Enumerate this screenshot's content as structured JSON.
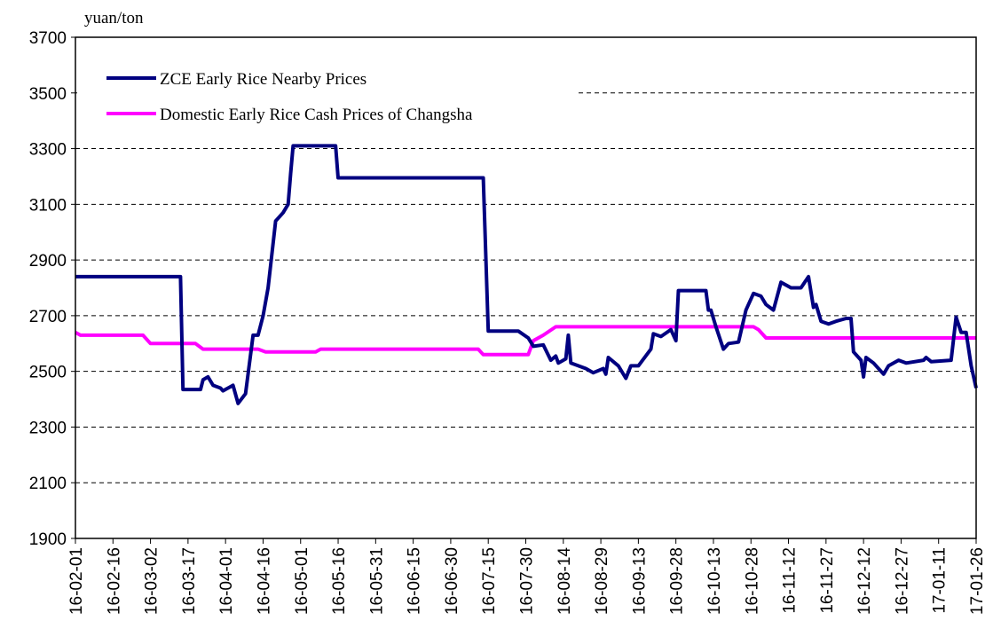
{
  "chart_data": {
    "type": "line",
    "y_unit_label": "yuan/ton",
    "ylim": [
      1900,
      3700
    ],
    "yticks": [
      1900,
      2100,
      2300,
      2500,
      2700,
      2900,
      3100,
      3300,
      3500,
      3700
    ],
    "xlim": [
      "16-02-01",
      "17-01-26"
    ],
    "xticks": [
      "16-02-01",
      "16-02-16",
      "16-03-02",
      "16-03-17",
      "16-04-01",
      "16-04-16",
      "16-05-01",
      "16-05-16",
      "16-05-31",
      "16-06-15",
      "16-06-30",
      "16-07-15",
      "16-07-30",
      "16-08-14",
      "16-08-29",
      "16-09-13",
      "16-09-28",
      "16-10-13",
      "16-10-28",
      "16-11-12",
      "16-11-27",
      "16-12-12",
      "16-12-27",
      "17-01-11",
      "17-01-26"
    ],
    "grid": true,
    "legend": "upper left",
    "series": [
      {
        "name": "ZCE Early Rice Nearby Prices",
        "color": "#000080",
        "x": [
          "16-02-01",
          "16-03-14",
          "16-03-15",
          "16-03-22",
          "16-03-23",
          "16-03-25",
          "16-03-27",
          "16-03-30",
          "16-03-31",
          "16-04-04",
          "16-04-06",
          "16-04-09",
          "16-04-12",
          "16-04-14",
          "16-04-16",
          "16-04-18",
          "16-04-21",
          "16-04-24",
          "16-04-26",
          "16-04-27",
          "16-04-28",
          "16-05-15",
          "16-05-16",
          "16-07-13",
          "16-07-15",
          "16-07-27",
          "16-07-31",
          "16-08-02",
          "16-08-06",
          "16-08-09",
          "16-08-11",
          "16-08-12",
          "16-08-15",
          "16-08-16",
          "16-08-17",
          "16-08-23",
          "16-08-26",
          "16-08-30",
          "16-08-31",
          "16-09-01",
          "16-09-05",
          "16-09-08",
          "16-09-10",
          "16-09-13",
          "16-09-18",
          "16-09-19",
          "16-09-22",
          "16-09-26",
          "16-09-28",
          "16-09-29",
          "16-10-10",
          "16-10-11",
          "16-10-12",
          "16-10-14",
          "16-10-17",
          "16-10-19",
          "16-10-23",
          "16-10-26",
          "16-10-29",
          "16-11-01",
          "16-11-03",
          "16-11-06",
          "16-11-09",
          "16-11-13",
          "16-11-17",
          "16-11-20",
          "16-11-22",
          "16-11-23",
          "16-11-25",
          "16-11-28",
          "16-12-01",
          "16-12-05",
          "16-12-07",
          "16-12-08",
          "16-12-11",
          "16-12-12",
          "16-12-13",
          "16-12-16",
          "16-12-20",
          "16-12-22",
          "16-12-26",
          "16-12-29",
          "17-01-05",
          "17-01-06",
          "17-01-08",
          "17-01-16",
          "17-01-18",
          "17-01-20",
          "17-01-22",
          "17-01-24",
          "17-01-26"
        ],
        "values": [
          2840,
          2840,
          2435,
          2435,
          2470,
          2480,
          2450,
          2440,
          2430,
          2450,
          2385,
          2420,
          2630,
          2630,
          2700,
          2800,
          3040,
          3070,
          3100,
          3210,
          3310,
          3310,
          3195,
          3195,
          2645,
          2645,
          2620,
          2590,
          2595,
          2540,
          2555,
          2530,
          2545,
          2630,
          2530,
          2510,
          2495,
          2510,
          2490,
          2550,
          2520,
          2475,
          2520,
          2520,
          2580,
          2635,
          2625,
          2650,
          2610,
          2790,
          2790,
          2720,
          2720,
          2660,
          2580,
          2600,
          2605,
          2720,
          2780,
          2770,
          2740,
          2720,
          2820,
          2800,
          2800,
          2840,
          2730,
          2740,
          2680,
          2670,
          2680,
          2690,
          2690,
          2570,
          2540,
          2480,
          2550,
          2530,
          2490,
          2520,
          2540,
          2530,
          2540,
          2550,
          2535,
          2540,
          2695,
          2640,
          2640,
          2520,
          2440
        ]
      },
      {
        "name": "Domestic Early Rice Cash Prices of Changsha",
        "color": "#ff00ff",
        "x": [
          "16-02-01",
          "16-02-03",
          "16-02-28",
          "16-03-02",
          "16-03-20",
          "16-03-23",
          "16-04-14",
          "16-04-17",
          "16-05-07",
          "16-05-09",
          "16-07-11",
          "16-07-13",
          "16-07-31",
          "16-08-02",
          "16-08-06",
          "16-08-11",
          "16-10-29",
          "16-10-31",
          "16-11-03",
          "17-01-26"
        ],
        "values": [
          2640,
          2630,
          2630,
          2600,
          2600,
          2580,
          2580,
          2570,
          2570,
          2580,
          2580,
          2560,
          2560,
          2610,
          2630,
          2660,
          2660,
          2650,
          2620,
          2620
        ]
      }
    ]
  }
}
